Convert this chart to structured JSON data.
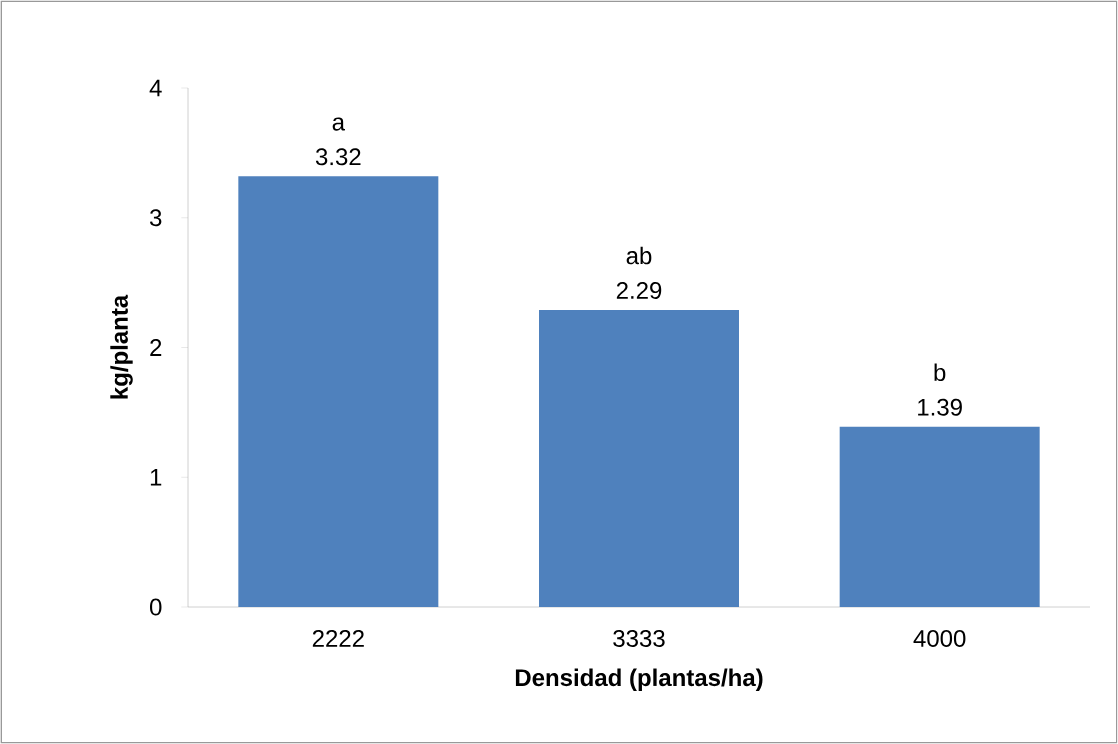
{
  "chart_data": {
    "type": "bar",
    "xlabel": "Densidad (plantas/ha)",
    "ylabel": "kg/planta",
    "categories": [
      "2222",
      "3333",
      "4000"
    ],
    "values": [
      3.32,
      2.29,
      1.39
    ],
    "color": "#4f81bd",
    "ylim": [
      0,
      4
    ],
    "yticks": [
      0,
      1,
      2,
      3,
      4
    ],
    "data_labels": true,
    "annotations": [
      {
        "text": "a",
        "x": "2222",
        "y": 3.32
      },
      {
        "text": "ab",
        "x": "3333",
        "y": 2.29
      },
      {
        "text": "b",
        "x": "4000",
        "y": 1.39
      }
    ]
  }
}
